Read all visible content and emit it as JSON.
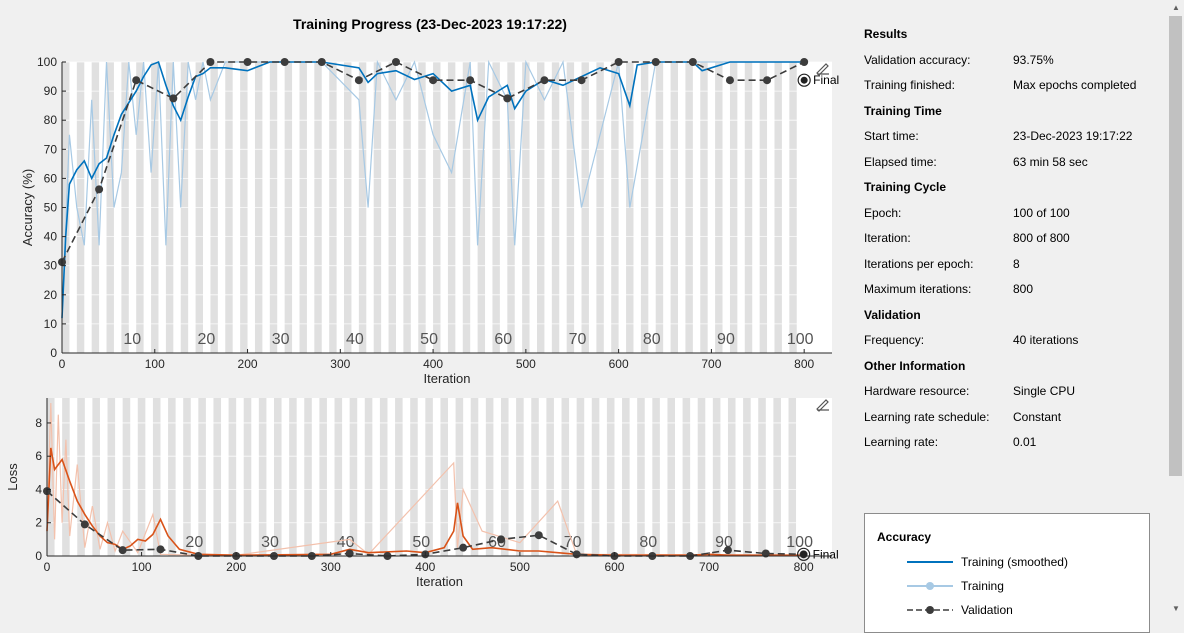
{
  "title": "Training Progress (23-Dec-2023 19:17:22)",
  "colors": {
    "accuracy_smoothed": "#0072bd",
    "accuracy_raw": "#a7c9e4",
    "loss_smoothed": "#d95319",
    "loss_raw": "#f3c1ac",
    "validation": "#3c3c3c",
    "epoch_band": "#e0e0e0"
  },
  "chart_data": [
    {
      "type": "line",
      "ylabel": "Accuracy (%)",
      "xlabel": "Iteration",
      "xlim": [
        0,
        830
      ],
      "ylim": [
        0,
        100
      ],
      "x_ticks": [
        0,
        100,
        200,
        300,
        400,
        500,
        600,
        700,
        800
      ],
      "y_ticks": [
        0,
        10,
        20,
        30,
        40,
        50,
        60,
        70,
        80,
        90,
        100
      ],
      "epoch_labels": [
        10,
        20,
        30,
        40,
        50,
        60,
        70,
        80,
        90,
        100
      ],
      "final_label": "Final",
      "series": [
        {
          "name": "Training (smoothed)",
          "x": [
            0,
            4,
            8,
            16,
            24,
            32,
            40,
            48,
            56,
            64,
            72,
            80,
            88,
            96,
            104,
            112,
            120,
            128,
            136,
            144,
            152,
            160,
            176,
            200,
            224,
            240,
            280,
            320,
            330,
            340,
            360,
            380,
            400,
            420,
            440,
            448,
            460,
            480,
            488,
            500,
            520,
            540,
            560,
            580,
            600,
            612,
            620,
            640,
            680,
            690,
            720,
            760,
            800
          ],
          "y": [
            12,
            40,
            58,
            63,
            66,
            60,
            65,
            67,
            75,
            82,
            86,
            90,
            95,
            99,
            100,
            92,
            85,
            80,
            88,
            95,
            96,
            98,
            98,
            97,
            100,
            100,
            100,
            98,
            93,
            96,
            97,
            94,
            96,
            90,
            92,
            80,
            88,
            92,
            84,
            90,
            94,
            92,
            95,
            98,
            96,
            85,
            99,
            100,
            100,
            97,
            100,
            100,
            100
          ]
        },
        {
          "name": "Training",
          "x": [
            0,
            8,
            16,
            24,
            32,
            40,
            48,
            56,
            64,
            72,
            80,
            88,
            96,
            104,
            112,
            120,
            128,
            136,
            144,
            152,
            160,
            176,
            200,
            240,
            280,
            320,
            330,
            340,
            360,
            380,
            400,
            420,
            440,
            448,
            460,
            480,
            488,
            500,
            520,
            540,
            560,
            600,
            612,
            640,
            680,
            720,
            760,
            800
          ],
          "y": [
            12,
            75,
            50,
            37,
            87,
            37,
            100,
            50,
            62,
            100,
            75,
            100,
            62,
            100,
            37,
            100,
            50,
            100,
            87,
            100,
            87,
            100,
            100,
            100,
            100,
            87,
            50,
            100,
            87,
            100,
            75,
            62,
            100,
            37,
            100,
            87,
            37,
            100,
            87,
            100,
            50,
            100,
            50,
            100,
            100,
            100,
            100,
            100
          ]
        },
        {
          "name": "Validation",
          "x": [
            0,
            40,
            80,
            120,
            160,
            200,
            240,
            280,
            320,
            360,
            400,
            440,
            480,
            520,
            560,
            600,
            640,
            680,
            720,
            760,
            800
          ],
          "y": [
            31.25,
            56.25,
            93.75,
            87.5,
            100,
            100,
            100,
            100,
            93.75,
            100,
            93.75,
            93.75,
            87.5,
            93.75,
            93.75,
            100,
            100,
            100,
            93.75,
            93.75,
            100
          ]
        }
      ],
      "final_point": {
        "x": 800,
        "y": 93.75
      }
    },
    {
      "type": "line",
      "ylabel": "Loss",
      "xlabel": "Iteration",
      "xlim": [
        0,
        830
      ],
      "ylim": [
        0,
        9.5
      ],
      "x_ticks": [
        0,
        100,
        200,
        300,
        400,
        500,
        600,
        700,
        800
      ],
      "y_ticks": [
        0,
        2,
        4,
        6,
        8
      ],
      "epoch_labels": [
        20,
        30,
        40,
        50,
        60,
        70,
        80,
        90,
        100
      ],
      "final_label": "Final",
      "series": [
        {
          "name": "Training (smoothed)",
          "x": [
            0,
            4,
            8,
            16,
            24,
            32,
            40,
            48,
            56,
            64,
            72,
            80,
            88,
            96,
            104,
            112,
            120,
            128,
            140,
            160,
            200,
            300,
            320,
            340,
            380,
            400,
            420,
            430,
            434,
            440,
            450,
            470,
            500,
            520,
            540,
            560,
            600,
            680,
            700,
            720,
            760,
            800
          ],
          "y": [
            1.5,
            6.5,
            5.2,
            5.8,
            4.5,
            3.3,
            2.5,
            1.8,
            1.2,
            0.8,
            0.7,
            0.4,
            0.6,
            1.0,
            0.9,
            1.3,
            2.2,
            1.2,
            0.4,
            0.1,
            0.05,
            0.1,
            0.4,
            0.2,
            0.3,
            0.2,
            0.5,
            1.5,
            3.2,
            1.2,
            0.4,
            0.5,
            0.3,
            0.3,
            0.2,
            0.1,
            0.05,
            0.05,
            0.1,
            0.05,
            0.05,
            0.05
          ]
        },
        {
          "name": "Training",
          "x": [
            0,
            4,
            8,
            12,
            16,
            20,
            24,
            32,
            40,
            48,
            56,
            64,
            72,
            80,
            96,
            112,
            120,
            160,
            200,
            320,
            340,
            430,
            434,
            440,
            460,
            500,
            540,
            560,
            800
          ],
          "y": [
            1.5,
            9.2,
            1.0,
            8.5,
            2.0,
            7.0,
            1.2,
            5.5,
            0.5,
            3.0,
            0.4,
            2.0,
            0.3,
            1.5,
            0.2,
            2.5,
            0.1,
            0.05,
            0.05,
            1.0,
            0.1,
            5.6,
            0.5,
            4.0,
            1.5,
            0.8,
            3.3,
            0.1,
            0.05
          ]
        },
        {
          "name": "Validation",
          "x": [
            0,
            40,
            80,
            120,
            160,
            200,
            240,
            280,
            320,
            360,
            400,
            440,
            480,
            520,
            560,
            600,
            640,
            680,
            720,
            760,
            800
          ],
          "y": [
            3.9,
            1.9,
            0.35,
            0.4,
            0.0,
            0.0,
            0.0,
            0.0,
            0.15,
            0.0,
            0.1,
            0.5,
            1.0,
            1.25,
            0.1,
            0.0,
            0.0,
            0.0,
            0.35,
            0.15,
            0.1
          ]
        }
      ],
      "final_point": {
        "x": 800,
        "y": 0.1
      }
    }
  ],
  "info": {
    "sections": [
      {
        "title": "Results",
        "rows": [
          {
            "k": "Validation accuracy:",
            "v": "93.75%"
          },
          {
            "k": "Training finished:",
            "v": "Max epochs completed"
          }
        ]
      },
      {
        "title": "Training Time",
        "rows": [
          {
            "k": "Start time:",
            "v": "23-Dec-2023 19:17:22"
          },
          {
            "k": "Elapsed time:",
            "v": "63 min 58 sec"
          }
        ]
      },
      {
        "title": "Training Cycle",
        "rows": [
          {
            "k": "Epoch:",
            "v": "100 of 100"
          },
          {
            "k": "Iteration:",
            "v": "800 of 800"
          },
          {
            "k": "Iterations per epoch:",
            "v": "8"
          },
          {
            "k": "Maximum iterations:",
            "v": "800"
          }
        ]
      },
      {
        "title": "Validation",
        "rows": [
          {
            "k": "Frequency:",
            "v": "40 iterations"
          }
        ]
      },
      {
        "title": "Other Information",
        "rows": [
          {
            "k": "Hardware resource:",
            "v": "Single CPU"
          },
          {
            "k": "Learning rate schedule:",
            "v": "Constant"
          },
          {
            "k": "Learning rate:",
            "v": "0.01"
          }
        ]
      }
    ]
  },
  "legend": {
    "title": "Accuracy",
    "items": [
      {
        "label": "Training (smoothed)",
        "icon": "smoothed-line-icon"
      },
      {
        "label": "Training",
        "icon": "raw-line-icon"
      },
      {
        "label": "Validation",
        "icon": "validation-line-icon"
      }
    ]
  }
}
